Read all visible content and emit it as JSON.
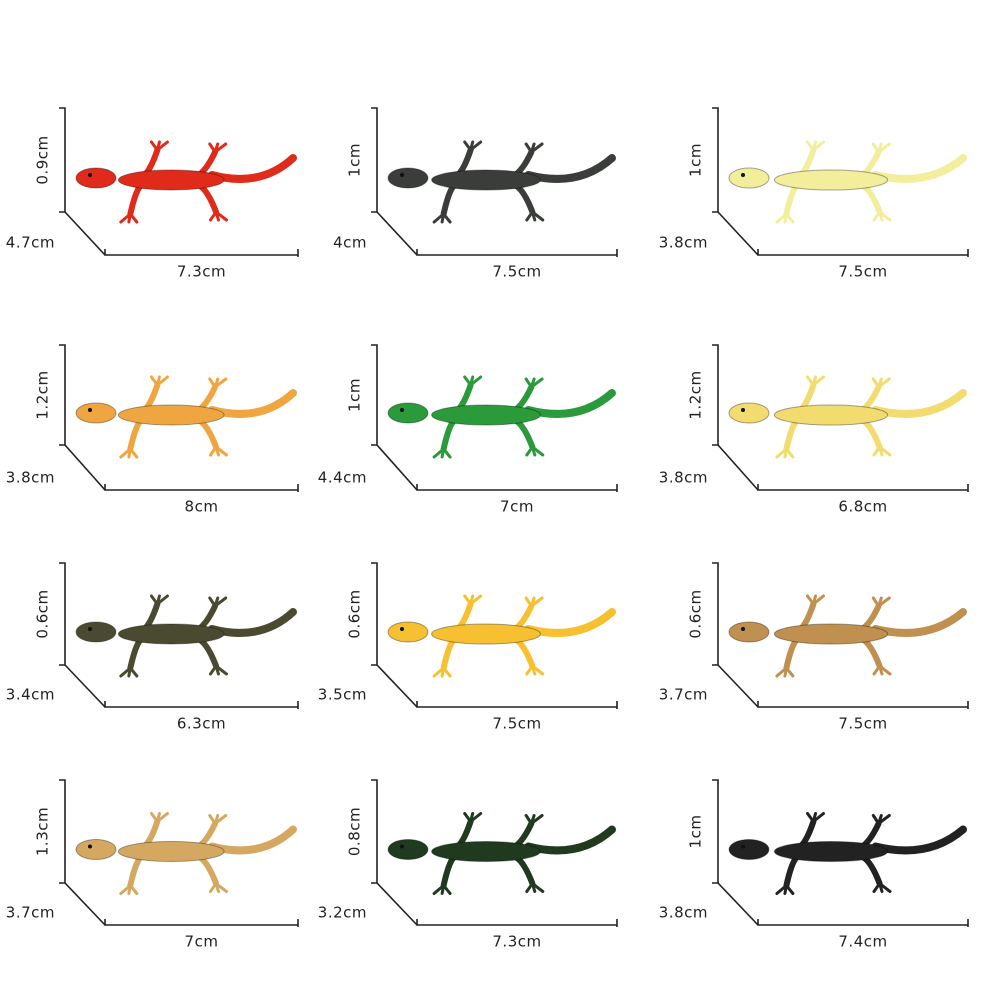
{
  "items": [
    {
      "height": "0.9cm",
      "depth": "4.7cm",
      "length": "7.3cm",
      "color": "#e02a1a"
    },
    {
      "height": "1cm",
      "depth": "4cm",
      "length": "7.5cm",
      "color": "#3a3d3a"
    },
    {
      "height": "1cm",
      "depth": "3.8cm",
      "length": "7.5cm",
      "color": "#f3ee9c"
    },
    {
      "height": "1.2cm",
      "depth": "3.8cm",
      "length": "8cm",
      "color": "#f0a640"
    },
    {
      "height": "1cm",
      "depth": "4.4cm",
      "length": "7cm",
      "color": "#2a9a3a"
    },
    {
      "height": "1.2cm",
      "depth": "3.8cm",
      "length": "6.8cm",
      "color": "#f2dc70"
    },
    {
      "height": "0.6cm",
      "depth": "3.4cm",
      "length": "6.3cm",
      "color": "#4a4a30"
    },
    {
      "height": "0.6cm",
      "depth": "3.5cm",
      "length": "7.5cm",
      "color": "#f7c030"
    },
    {
      "height": "0.6cm",
      "depth": "3.7cm",
      "length": "7.5cm",
      "color": "#c09050"
    },
    {
      "height": "1.3cm",
      "depth": "3.7cm",
      "length": "7cm",
      "color": "#d4a860"
    },
    {
      "height": "0.8cm",
      "depth": "3.2cm",
      "length": "7.3cm",
      "color": "#203a20"
    },
    {
      "height": "1cm",
      "depth": "3.8cm",
      "length": "7.4cm",
      "color": "#222222"
    }
  ]
}
